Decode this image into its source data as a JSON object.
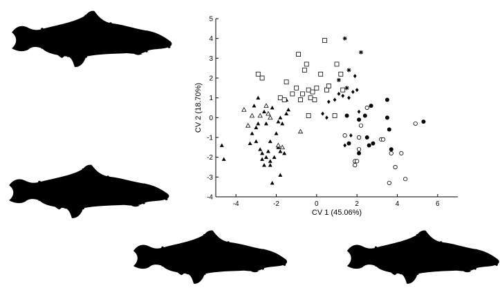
{
  "chart_data": {
    "type": "scatter",
    "title": "",
    "xlabel": "CV 1 (45.06%)",
    "ylabel": "CV 2 (18.70%)",
    "xlim": [
      -5,
      7
    ],
    "ylim": [
      -4,
      5
    ],
    "xticks": [
      -4,
      -2,
      0,
      2,
      4,
      6
    ],
    "yticks": [
      -4,
      -3,
      -2,
      -1,
      0,
      1,
      2,
      3,
      4,
      5
    ],
    "grid": false,
    "series": [
      {
        "marker": "filled-triangle",
        "points": [
          [
            -4.7,
            -1.4
          ],
          [
            -4.6,
            -2.1
          ],
          [
            -3.3,
            -1.3
          ],
          [
            -3.2,
            -0.8
          ],
          [
            -3.0,
            -1.2
          ],
          [
            -3.0,
            -0.5
          ],
          [
            -2.9,
            1.0
          ],
          [
            -2.8,
            -1.6
          ],
          [
            -2.7,
            -1.8
          ],
          [
            -2.7,
            -2.1
          ],
          [
            -2.6,
            -2.4
          ],
          [
            -2.5,
            -0.3
          ],
          [
            -2.5,
            -2.0
          ],
          [
            -2.4,
            -1.7
          ],
          [
            -2.3,
            -1.2
          ],
          [
            -2.3,
            -2.2
          ],
          [
            -2.3,
            -2.4
          ],
          [
            -2.2,
            0.5
          ],
          [
            -2.2,
            -3.3
          ],
          [
            -2.1,
            -2.0
          ],
          [
            -2.0,
            -0.8
          ],
          [
            -1.9,
            -1.5
          ],
          [
            -1.8,
            0.0
          ],
          [
            -1.8,
            -1.7
          ],
          [
            -1.8,
            -2.9
          ],
          [
            -1.7,
            -0.3
          ],
          [
            -1.6,
            -1.8
          ],
          [
            -1.5,
            0.2
          ],
          [
            -1.5,
            0.9
          ],
          [
            -1.4,
            0.4
          ],
          [
            -2.6,
            0.3
          ],
          [
            -2.8,
            0.1
          ],
          [
            -3.1,
            0.6
          ],
          [
            -2.9,
            -0.3
          ],
          [
            -1.9,
            -0.2
          ]
        ]
      },
      {
        "marker": "open-triangle",
        "points": [
          [
            -3.6,
            0.4
          ],
          [
            -3.4,
            -0.4
          ],
          [
            -3.2,
            0.1
          ],
          [
            -2.8,
            0.1
          ],
          [
            -2.5,
            0.6
          ],
          [
            -2.4,
            0.2
          ],
          [
            -2.3,
            0.0
          ],
          [
            -1.9,
            -1.4
          ],
          [
            -1.7,
            -1.5
          ],
          [
            -0.8,
            -0.7
          ]
        ]
      },
      {
        "marker": "open-square",
        "points": [
          [
            -2.9,
            2.2
          ],
          [
            -2.7,
            2.0
          ],
          [
            -1.8,
            1.0
          ],
          [
            -1.6,
            0.9
          ],
          [
            -1.5,
            1.8
          ],
          [
            -1.2,
            1.2
          ],
          [
            -1.0,
            1.5
          ],
          [
            -0.8,
            0.9
          ],
          [
            -0.9,
            3.2
          ],
          [
            -0.7,
            1.2
          ],
          [
            -0.6,
            2.4
          ],
          [
            -0.5,
            2.7
          ],
          [
            -0.4,
            1.4
          ],
          [
            -0.3,
            1.0
          ],
          [
            -0.2,
            1.3
          ],
          [
            0.0,
            1.5
          ],
          [
            0.2,
            2.2
          ],
          [
            0.4,
            3.9
          ],
          [
            0.5,
            1.4
          ],
          [
            0.6,
            1.6
          ],
          [
            0.9,
            0.1
          ],
          [
            1.0,
            2.7
          ],
          [
            1.2,
            2.2
          ],
          [
            1.3,
            1.4
          ],
          [
            -0.4,
            0.1
          ],
          [
            -0.1,
            0.9
          ]
        ]
      },
      {
        "marker": "filled-diamond",
        "points": [
          [
            0.3,
            0.2
          ],
          [
            0.5,
            0.0
          ],
          [
            0.6,
            0.8
          ],
          [
            0.9,
            0.9
          ],
          [
            1.1,
            1.2
          ],
          [
            1.3,
            1.1
          ],
          [
            1.6,
            1.0
          ],
          [
            1.8,
            1.3
          ],
          [
            1.9,
            2.1
          ],
          [
            2.0,
            1.4
          ],
          [
            2.1,
            0.3
          ],
          [
            1.4,
            -1.4
          ],
          [
            1.7,
            -0.9
          ]
        ]
      },
      {
        "marker": "asterisk",
        "points": [
          [
            1.1,
            1.9
          ],
          [
            1.4,
            4.0
          ],
          [
            1.5,
            1.5
          ],
          [
            1.6,
            2.4
          ],
          [
            2.2,
            3.3
          ]
        ]
      },
      {
        "marker": "filled-circle",
        "points": [
          [
            1.5,
            0.1
          ],
          [
            1.6,
            -1.3
          ],
          [
            2.1,
            -0.1
          ],
          [
            2.4,
            0.1
          ],
          [
            2.5,
            -1.0
          ],
          [
            2.6,
            -1.4
          ],
          [
            2.7,
            0.6
          ],
          [
            2.8,
            -1.3
          ],
          [
            3.5,
            0.9
          ],
          [
            3.5,
            0.0
          ],
          [
            3.6,
            -0.6
          ],
          [
            3.7,
            -1.6
          ],
          [
            5.3,
            -0.2
          ],
          [
            2.1,
            -1.8
          ]
        ]
      },
      {
        "marker": "open-circle",
        "points": [
          [
            1.4,
            -0.9
          ],
          [
            1.9,
            -2.2
          ],
          [
            1.9,
            -2.4
          ],
          [
            2.1,
            -1.6
          ],
          [
            2.2,
            -0.4
          ],
          [
            2.5,
            0.5
          ],
          [
            3.2,
            -1.1
          ],
          [
            3.3,
            -1.1
          ],
          [
            3.6,
            -3.3
          ],
          [
            3.7,
            -1.8
          ],
          [
            3.9,
            -2.5
          ],
          [
            4.2,
            -1.8
          ],
          [
            4.4,
            -3.1
          ],
          [
            4.9,
            -0.3
          ],
          [
            2.0,
            -2.2
          ],
          [
            2.1,
            -1.0
          ]
        ]
      }
    ]
  },
  "fish_outlines": {
    "icon": "fish-outline-icon",
    "count": 4
  }
}
